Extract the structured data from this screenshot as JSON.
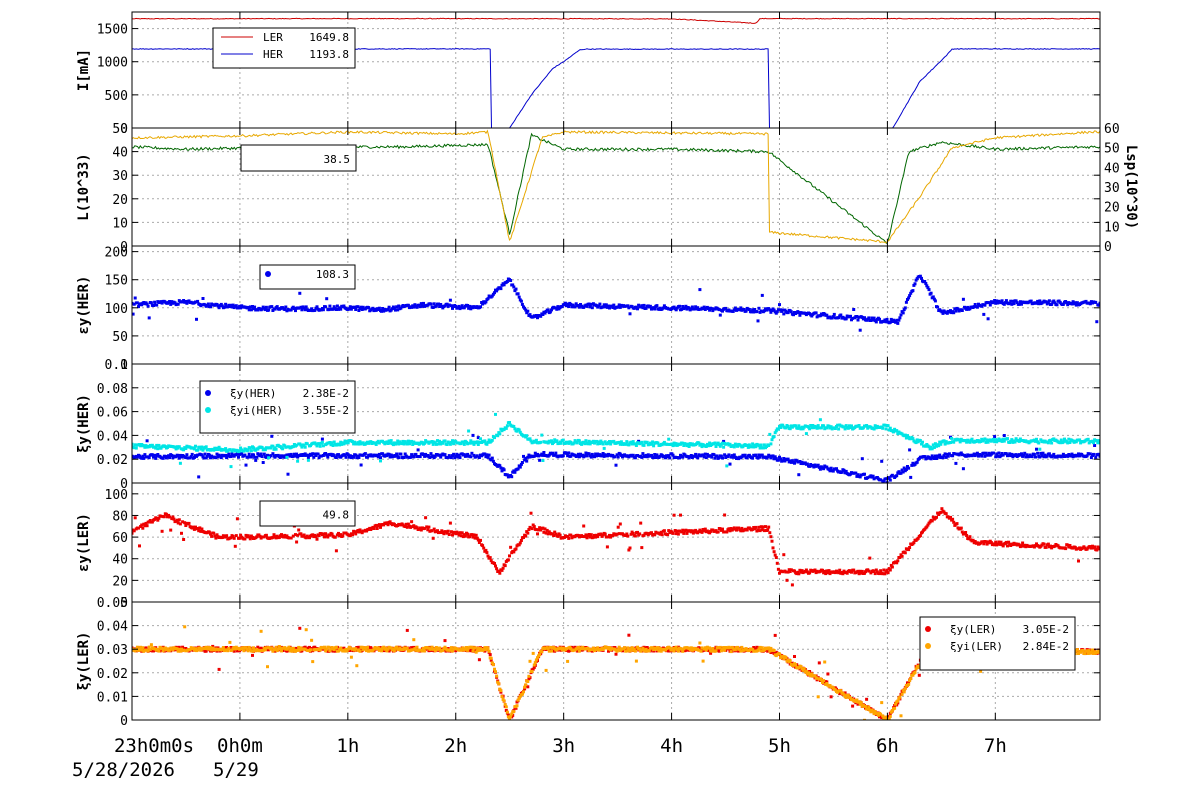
{
  "chart_data": [
    {
      "type": "line",
      "ylabel": "I[mA]",
      "ylim": [
        0,
        1750
      ],
      "yticks": [
        0,
        500,
        1000,
        1500
      ],
      "series": [
        {
          "name": "LER",
          "value_label": "1649.8",
          "color": "#cc0000",
          "points": [
            [
              0,
              1648
            ],
            [
              2.5,
              1650
            ],
            [
              5.0,
              1647
            ],
            [
              5.78,
              1580
            ],
            [
              5.82,
              1650
            ],
            [
              8.0,
              1649
            ],
            [
              8.9,
              1649
            ]
          ]
        },
        {
          "name": "HER",
          "value_label": "1193.8",
          "color": "#0000cc",
          "points": [
            [
              0,
              1193
            ],
            [
              3.33,
              1193
            ],
            [
              3.33,
              0
            ],
            [
              3.5,
              0
            ],
            [
              3.7,
              500
            ],
            [
              3.9,
              900
            ],
            [
              4.0,
              1000
            ],
            [
              4.15,
              1180
            ],
            [
              4.2,
              1190
            ],
            [
              5.9,
              1190
            ],
            [
              5.9,
              0
            ],
            [
              7.05,
              0
            ],
            [
              7.3,
              700
            ],
            [
              7.55,
              1100
            ],
            [
              7.6,
              1193
            ],
            [
              8.9,
              1193
            ]
          ]
        }
      ]
    },
    {
      "type": "line",
      "ylabel": "L(10^33)",
      "ylim": [
        0,
        50
      ],
      "yticks": [
        0,
        10,
        20,
        30,
        40,
        50
      ],
      "y2label": "Lsp(10^30)",
      "y2lim": [
        0,
        60
      ],
      "y2ticks": [
        0,
        10,
        20,
        30,
        40,
        50,
        60
      ],
      "legend_value": "38.5",
      "series": [
        {
          "name": "L",
          "color": "#006600",
          "points": [
            [
              0,
              42
            ],
            [
              0.5,
              41
            ],
            [
              1.0,
              41.5
            ],
            [
              2.0,
              42
            ],
            [
              2.5,
              42
            ],
            [
              3.3,
              43
            ],
            [
              3.5,
              5
            ],
            [
              3.7,
              47
            ],
            [
              4.0,
              41
            ],
            [
              5.0,
              41
            ],
            [
              5.9,
              40
            ],
            [
              7.0,
              1
            ],
            [
              7.2,
              40
            ],
            [
              7.5,
              44
            ],
            [
              8.0,
              41
            ],
            [
              8.9,
              42
            ]
          ]
        },
        {
          "name": "Lsp",
          "color": "#e8a800",
          "axis": "right",
          "points": [
            [
              0,
              55
            ],
            [
              1.0,
              56
            ],
            [
              2.0,
              58
            ],
            [
              3.0,
              57
            ],
            [
              3.3,
              58
            ],
            [
              3.5,
              2
            ],
            [
              3.8,
              55
            ],
            [
              4.0,
              58
            ],
            [
              5.9,
              57
            ],
            [
              5.9,
              7
            ],
            [
              7.0,
              2
            ],
            [
              7.3,
              25
            ],
            [
              7.6,
              50
            ],
            [
              8.0,
              55
            ],
            [
              8.9,
              58
            ]
          ]
        }
      ]
    },
    {
      "type": "scatter",
      "ylabel": "εy(HER)",
      "ylim": [
        0,
        210
      ],
      "yticks": [
        0,
        50,
        100,
        150,
        200
      ],
      "series": [
        {
          "name": "",
          "value_label": "108.3",
          "color": "#0000ee",
          "points": [
            [
              0,
              105
            ],
            [
              0.5,
              110
            ],
            [
              1.0,
              100
            ],
            [
              1.5,
              98
            ],
            [
              2.0,
              100
            ],
            [
              2.3,
              96
            ],
            [
              2.7,
              105
            ],
            [
              3.2,
              100
            ],
            [
              3.5,
              150
            ],
            [
              3.7,
              80
            ],
            [
              4.0,
              105
            ],
            [
              5.0,
              100
            ],
            [
              5.9,
              95
            ],
            [
              7.1,
              75
            ],
            [
              7.3,
              160
            ],
            [
              7.5,
              90
            ],
            [
              8.0,
              110
            ],
            [
              8.9,
              108
            ]
          ]
        }
      ]
    },
    {
      "type": "scatter",
      "ylabel": "ξy(HER)",
      "ylim": [
        0,
        0.1
      ],
      "yticks": [
        0,
        0.02,
        0.04,
        0.06,
        0.08,
        0.1
      ],
      "series": [
        {
          "name": "ξy(HER)",
          "value_label": "2.38E-2",
          "color": "#0000ee",
          "points": [
            [
              0,
              0.022
            ],
            [
              1.0,
              0.023
            ],
            [
              2.0,
              0.023
            ],
            [
              3.3,
              0.023
            ],
            [
              3.5,
              0.005
            ],
            [
              3.7,
              0.024
            ],
            [
              5.9,
              0.022
            ],
            [
              7.0,
              0.002
            ],
            [
              7.3,
              0.02
            ],
            [
              7.6,
              0.024
            ],
            [
              8.9,
              0.023
            ]
          ]
        },
        {
          "name": "ξyi(HER)",
          "value_label": "3.55E-2",
          "color": "#00e5e5",
          "points": [
            [
              0,
              0.031
            ],
            [
              1.0,
              0.028
            ],
            [
              2.0,
              0.034
            ],
            [
              3.3,
              0.034
            ],
            [
              3.5,
              0.05
            ],
            [
              3.7,
              0.035
            ],
            [
              5.9,
              0.031
            ],
            [
              6.0,
              0.047
            ],
            [
              7.0,
              0.047
            ],
            [
              7.4,
              0.03
            ],
            [
              7.6,
              0.036
            ],
            [
              8.9,
              0.035
            ]
          ]
        }
      ]
    },
    {
      "type": "scatter",
      "ylabel": "εy(LER)",
      "ylim": [
        0,
        110
      ],
      "yticks": [
        0,
        20,
        40,
        60,
        80,
        100
      ],
      "legend_value": "49.8",
      "series": [
        {
          "name": "εy(LER)",
          "color": "#ee0000",
          "points": [
            [
              0,
              65
            ],
            [
              0.3,
              80
            ],
            [
              0.8,
              60
            ],
            [
              1.0,
              60
            ],
            [
              2.0,
              62
            ],
            [
              2.4,
              73
            ],
            [
              3.2,
              60
            ],
            [
              3.4,
              27
            ],
            [
              3.7,
              70
            ],
            [
              4.0,
              60
            ],
            [
              5.9,
              68
            ],
            [
              6.0,
              28
            ],
            [
              7.0,
              28
            ],
            [
              7.5,
              85
            ],
            [
              7.8,
              55
            ],
            [
              8.9,
              50
            ]
          ]
        }
      ]
    },
    {
      "type": "scatter",
      "ylabel": "ξy(LER)",
      "ylim": [
        0,
        0.05
      ],
      "yticks": [
        0,
        0.01,
        0.02,
        0.03,
        0.04,
        0.05
      ],
      "series": [
        {
          "name": "ξy(LER)",
          "value_label": "3.05E-2",
          "color": "#ee0000",
          "points": [
            [
              0,
              0.03
            ],
            [
              2.0,
              0.03
            ],
            [
              3.3,
              0.03
            ],
            [
              3.5,
              0.0
            ],
            [
              3.8,
              0.03
            ],
            [
              5.9,
              0.03
            ],
            [
              7.0,
              0.0
            ],
            [
              7.3,
              0.025
            ],
            [
              7.5,
              0.03
            ],
            [
              8.9,
              0.029
            ]
          ]
        },
        {
          "name": "ξyi(LER)",
          "value_label": "2.84E-2",
          "color": "#ffa500",
          "points": [
            [
              0,
              0.03
            ],
            [
              2.0,
              0.03
            ],
            [
              3.3,
              0.03
            ],
            [
              3.5,
              0.0
            ],
            [
              3.8,
              0.03
            ],
            [
              5.9,
              0.03
            ],
            [
              7.0,
              0.0
            ],
            [
              7.3,
              0.024
            ],
            [
              7.5,
              0.029
            ],
            [
              8.9,
              0.029
            ]
          ]
        }
      ]
    }
  ],
  "xaxis": {
    "range_hours": [
      0,
      8.97
    ],
    "tick_labels": [
      "23h0m0s",
      "0h0m",
      "1h",
      "2h",
      "3h",
      "4h",
      "5h",
      "6h",
      "7h"
    ],
    "tick_hours": [
      0,
      1,
      2,
      3,
      4,
      5,
      6,
      7,
      8
    ],
    "dates": [
      "5/28/2026",
      "5/29"
    ]
  }
}
